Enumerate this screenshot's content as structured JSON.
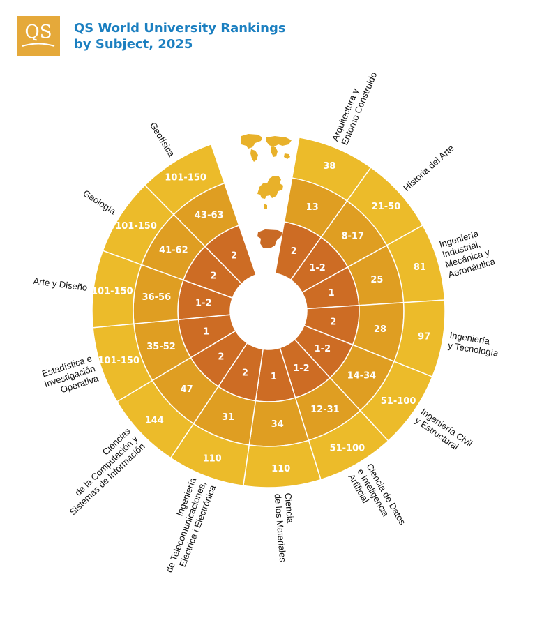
{
  "header": {
    "logo_text": "QS",
    "title_line1": "QS World University Rankings",
    "title_line2": "by Subject, 2025"
  },
  "colors": {
    "inner": "#cd6c24",
    "middle": "#df9e22",
    "outer": "#ecbb2a",
    "logo": "#e5a93a",
    "title": "#1b7fc0",
    "map": "#e8b12a",
    "spain": "#c96a25"
  },
  "chart_data": {
    "type": "radial_ring",
    "ring_order": [
      "inner",
      "middle",
      "outer"
    ],
    "gap_position": "top",
    "segments": [
      {
        "subject": [
          "Arquitectura y",
          "Entorno Construido"
        ],
        "inner": "2",
        "middle": "13",
        "outer": "38"
      },
      {
        "subject": [
          "Historia del Arte"
        ],
        "inner": "1-2",
        "middle": "8-17",
        "outer": "21-50"
      },
      {
        "subject": [
          "Ingeniería",
          "Industrial,",
          "Mecánica y",
          "Aeronáutica"
        ],
        "inner": "1",
        "middle": "25",
        "outer": "81"
      },
      {
        "subject": [
          "Ingeniería",
          "y Tecnología"
        ],
        "inner": "2",
        "middle": "28",
        "outer": "97"
      },
      {
        "subject": [
          "Ingeniería Civil",
          "y Estructural"
        ],
        "inner": "1-2",
        "middle": "14-34",
        "outer": "51-100"
      },
      {
        "subject": [
          "Ciencia de Datos",
          "e Inteligencia",
          "Artificial"
        ],
        "inner": "1-2",
        "middle": "12-31",
        "outer": "51-100"
      },
      {
        "subject": [
          "Ciencia",
          "de los Materiales"
        ],
        "inner": "1",
        "middle": "34",
        "outer": "110"
      },
      {
        "subject": [
          "Ingeniería",
          "de Telecomunicaciones,",
          "Eléctrica i Electrónica"
        ],
        "inner": "2",
        "middle": "31",
        "outer": "110"
      },
      {
        "subject": [
          "Ciencias",
          "de la Computación y",
          "Sistemas de Información"
        ],
        "inner": "2",
        "middle": "47",
        "outer": "144"
      },
      {
        "subject": [
          "Estadística e",
          "Investigación",
          "Operativa"
        ],
        "inner": "1",
        "middle": "35-52",
        "outer": "101-150"
      },
      {
        "subject": [
          "Arte y Diseño"
        ],
        "inner": "1-2",
        "middle": "36-56",
        "outer": "101-150"
      },
      {
        "subject": [
          "Geología"
        ],
        "inner": "2",
        "middle": "41-62",
        "outer": "101-150"
      },
      {
        "subject": [
          "Geofísica"
        ],
        "inner": "2",
        "middle": "43-63",
        "outer": "101-150"
      }
    ]
  }
}
